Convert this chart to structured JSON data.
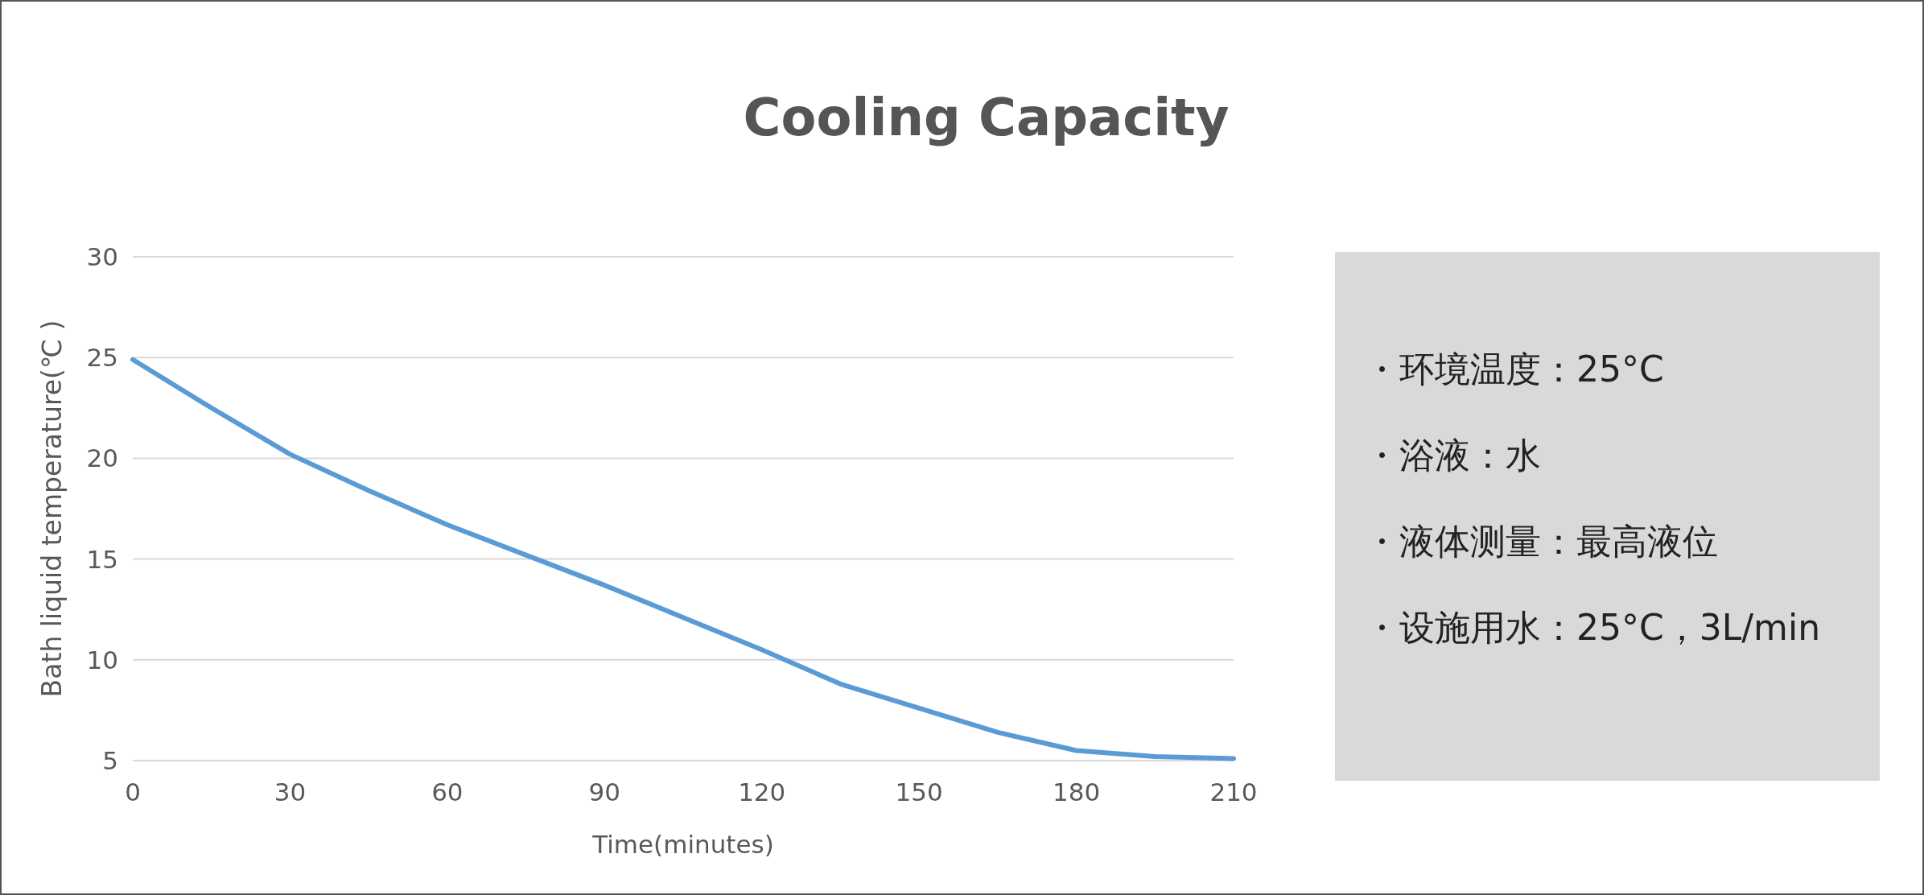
{
  "chart_data": [
    {
      "type": "line",
      "title": "Cooling Capacity",
      "xlabel": "Time(minutes)",
      "ylabel": "Bath liquid temperature(℃ )",
      "x": [
        0,
        15,
        30,
        45,
        60,
        75,
        90,
        105,
        120,
        135,
        150,
        165,
        180,
        195,
        210
      ],
      "series": [
        {
          "color": "#5b9bd5",
          "values": [
            24.9,
            22.5,
            20.2,
            18.4,
            16.7,
            15.2,
            13.7,
            12.1,
            10.5,
            8.8,
            7.6,
            6.4,
            5.5,
            5.2,
            5.1
          ]
        }
      ],
      "xlim": [
        0,
        210
      ],
      "xticks": [
        0,
        30,
        60,
        90,
        120,
        150,
        180,
        210
      ],
      "ylim": [
        5,
        30
      ],
      "yticks": [
        5,
        10,
        15,
        20,
        25,
        30
      ],
      "grid": "y",
      "marker": "none",
      "line_style": "solid"
    },
    {
      "type": "other",
      "annotations": [
        "・环境温度：25°C",
        "・浴液：水",
        "・液体测量：最高液位",
        "・设施用水：25°C，3L/min"
      ]
    }
  ]
}
